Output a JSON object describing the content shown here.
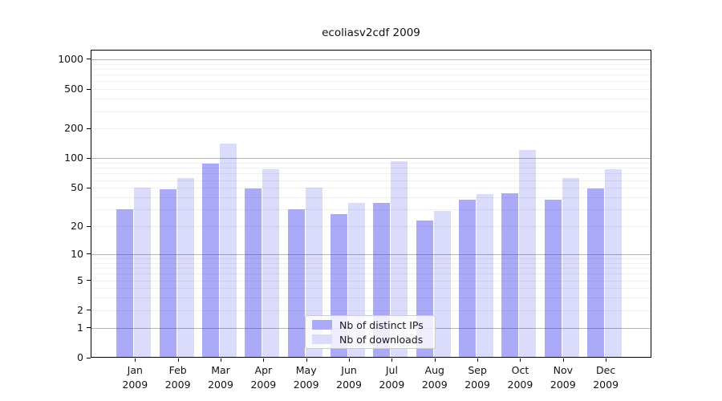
{
  "title": "ecoliasv2cdf 2009",
  "background_color": "#ffffff",
  "chart_data": {
    "type": "bar",
    "title": "ecoliasv2cdf 2009",
    "xlabel": "",
    "ylabel": "",
    "yscale": "log-like (y proportional to log10(value+1))",
    "ylim": [
      0,
      1250
    ],
    "grid": "on (minor light gray at 2-9 per decade, major darker at 1,10,100,1000; drawn over bars)",
    "legend_position": "lower center",
    "categories": [
      "Jan 2009",
      "Feb 2009",
      "Mar 2009",
      "Apr 2009",
      "May 2009",
      "Jun 2009",
      "Jul 2009",
      "Aug 2009",
      "Sep 2009",
      "Oct 2009",
      "Nov 2009",
      "Dec 2009"
    ],
    "xtick_months": [
      "Jan",
      "Feb",
      "Mar",
      "Apr",
      "May",
      "Jun",
      "Jul",
      "Aug",
      "Sep",
      "Oct",
      "Nov",
      "Dec"
    ],
    "xtick_year": "2009",
    "ytick_labels": [
      "1000",
      "500",
      "200",
      "100",
      "50",
      "20",
      "10",
      "5",
      "2",
      "1",
      "0"
    ],
    "ytick_values": [
      1000,
      500,
      200,
      100,
      50,
      20,
      10,
      5,
      2,
      1,
      0
    ],
    "series": [
      {
        "name": "Nb of distinct IPs",
        "color": "#aaaaf9",
        "values": [
          30,
          48,
          88,
          49,
          30,
          27,
          35,
          23,
          38,
          44,
          38,
          49
        ]
      },
      {
        "name": "Nb of downloads",
        "color": "#dbdbfb",
        "values": [
          50,
          63,
          142,
          77,
          50,
          35,
          93,
          29,
          43,
          122,
          63,
          77
        ]
      }
    ]
  }
}
